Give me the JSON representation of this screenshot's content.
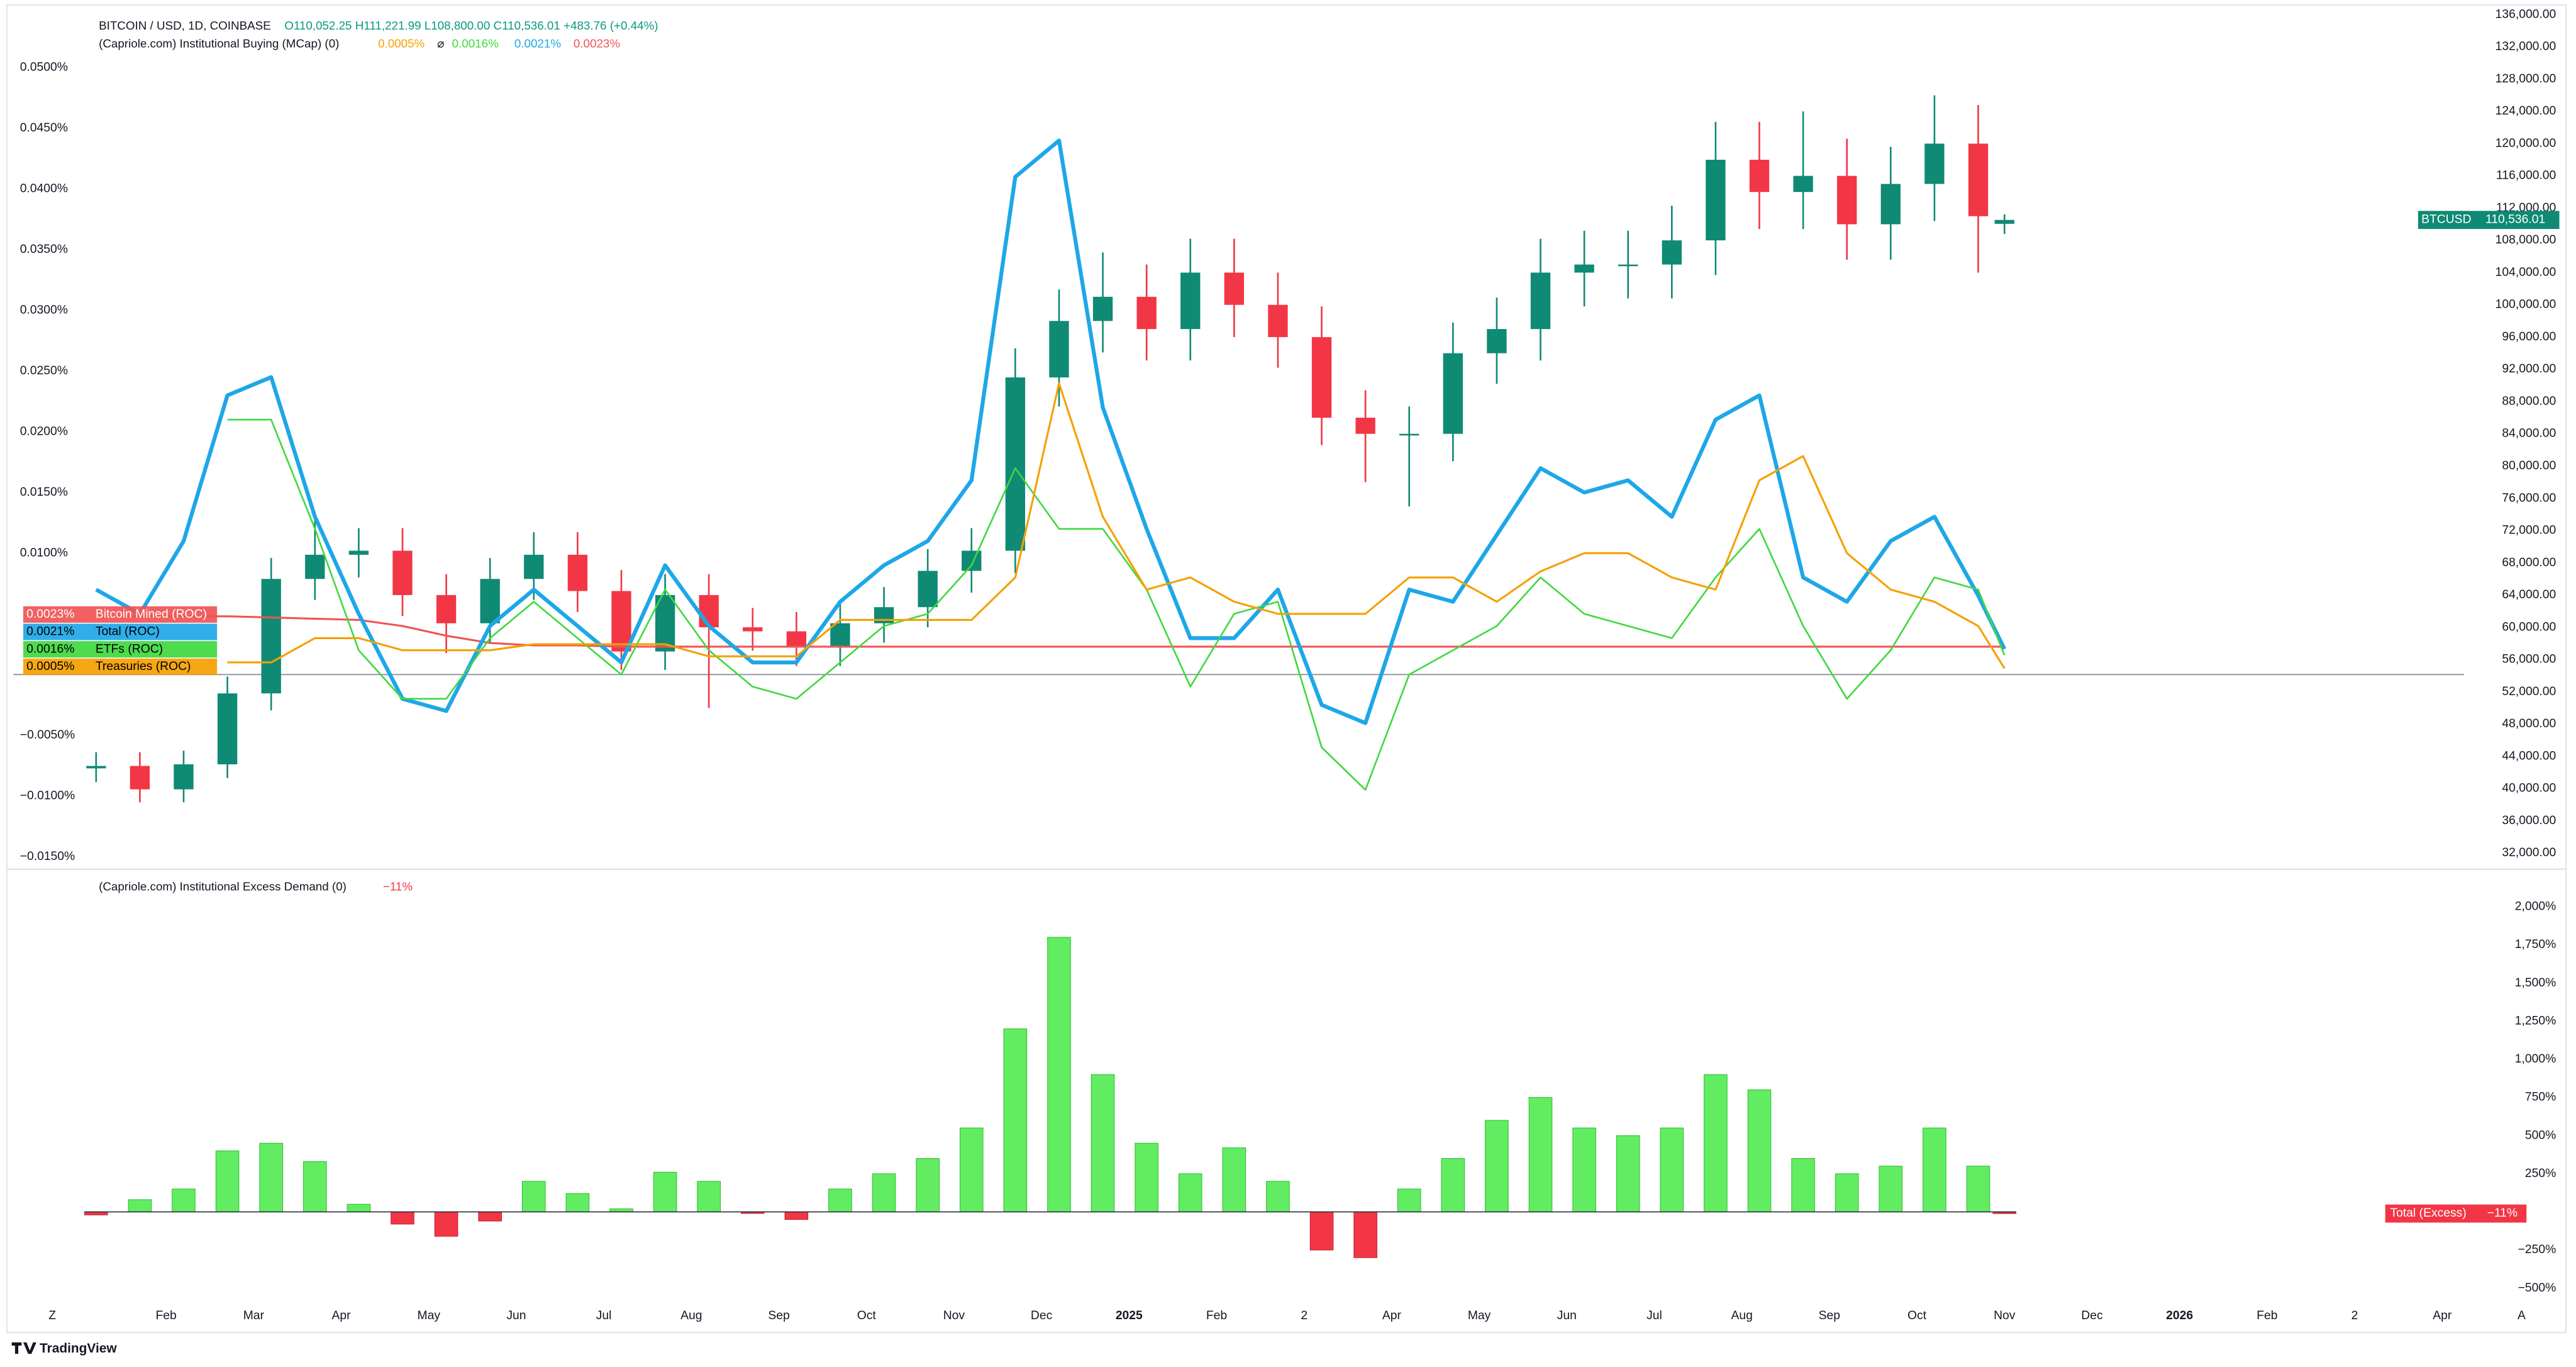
{
  "chart_data": [
    {
      "type": "candlestick",
      "title": "BITCOIN / USD, 1D, COINBASE",
      "ohlc_legend": "O110,052.25 H111,221.99 L108,800.00 C110,536.01 +483.76 (+0.44%)",
      "symbol": "BTCUSD",
      "last_label": "110,536.01",
      "indicator_title": "(Capriole.com) Institutional Buying (MCap) (0)",
      "legend_separator": "⌀",
      "up_color": "#0f8a74",
      "down_color": "#f23645",
      "x": [
        0.2,
        0.7,
        1.2,
        1.7,
        2.2,
        2.7,
        3.2,
        3.7,
        4.2,
        4.7,
        5.2,
        5.7,
        6.2,
        6.7,
        7.2,
        7.7,
        8.2,
        8.7,
        9.2,
        9.7,
        10.2,
        10.7,
        11.2,
        11.7,
        12.2,
        12.7,
        13.2,
        13.7,
        14.2,
        14.7,
        15.2,
        15.7,
        16.2,
        16.7,
        17.2,
        17.7,
        18.2,
        18.7,
        19.2,
        19.7,
        20.2,
        20.7,
        21.2,
        21.7,
        22.0
      ],
      "xlim": [
        -0.745,
        27.25
      ],
      "open": [
        42500,
        42800,
        39900,
        43000,
        51800,
        66000,
        69000,
        69500,
        64000,
        60500,
        66000,
        69000,
        64500,
        57000,
        64000,
        60000,
        59500,
        57500,
        60500,
        62500,
        67000,
        69500,
        91000,
        98000,
        101000,
        97000,
        104000,
        100000,
        96000,
        86000,
        84000,
        84000,
        94000,
        97000,
        104000,
        105000,
        105000,
        108000,
        118000,
        114000,
        116000,
        110000,
        115000,
        120000,
        110052.25
      ],
      "high": [
        44500,
        44500,
        44700,
        53900,
        68600,
        73500,
        72300,
        72300,
        66600,
        68600,
        71800,
        71800,
        67100,
        66600,
        66600,
        62400,
        61900,
        62900,
        65000,
        69700,
        72300,
        94600,
        101900,
        106500,
        105000,
        108200,
        108200,
        104000,
        99800,
        89400,
        87400,
        97800,
        100900,
        108200,
        109200,
        109200,
        112300,
        122700,
        122700,
        124000,
        120600,
        119600,
        126000,
        124800,
        111221.99
      ],
      "low": [
        40800,
        38300,
        38300,
        41300,
        49700,
        63400,
        66200,
        61400,
        56800,
        58100,
        63400,
        61900,
        54700,
        54700,
        50000,
        57100,
        55200,
        55200,
        58100,
        60000,
        64300,
        66700,
        87400,
        94100,
        93100,
        93100,
        96000,
        92200,
        82600,
        78000,
        75000,
        80600,
        90200,
        93100,
        99800,
        100800,
        100800,
        103700,
        109400,
        109400,
        105600,
        105600,
        110400,
        104000,
        108800
      ],
      "close": [
        42800,
        39900,
        43000,
        51800,
        66000,
        69000,
        69500,
        64000,
        60500,
        66000,
        69000,
        64500,
        57000,
        64000,
        60000,
        59500,
        57500,
        60500,
        62500,
        67000,
        69500,
        91000,
        98000,
        101000,
        97000,
        104000,
        100000,
        96000,
        86000,
        84000,
        84000,
        94000,
        97000,
        104000,
        105000,
        105000,
        108000,
        118000,
        114000,
        116000,
        110000,
        115000,
        120000,
        111000,
        110536.01
      ],
      "ylim": [
        30200,
        136800
      ],
      "yticks": [
        {
          "value": 136000,
          "label": "136,000.00"
        },
        {
          "value": 132000,
          "label": "132,000.00"
        },
        {
          "value": 128000,
          "label": "128,000.00"
        },
        {
          "value": 124000,
          "label": "124,000.00"
        },
        {
          "value": 120000,
          "label": "120,000.00"
        },
        {
          "value": 116000,
          "label": "116,000.00"
        },
        {
          "value": 112000,
          "label": "112,000.00"
        },
        {
          "value": 108000,
          "label": "108,000.00"
        },
        {
          "value": 104000,
          "label": "104,000.00"
        },
        {
          "value": 100000,
          "label": "100,000.00"
        },
        {
          "value": 96000,
          "label": "96,000.00"
        },
        {
          "value": 92000,
          "label": "92,000.00"
        },
        {
          "value": 88000,
          "label": "88,000.00"
        },
        {
          "value": 84000,
          "label": "84,000.00"
        },
        {
          "value": 80000,
          "label": "80,000.00"
        },
        {
          "value": 76000,
          "label": "76,000.00"
        },
        {
          "value": 72000,
          "label": "72,000.00"
        },
        {
          "value": 68000,
          "label": "68,000.00"
        },
        {
          "value": 64000,
          "label": "64,000.00"
        },
        {
          "value": 60000,
          "label": "60,000.00"
        },
        {
          "value": 56000,
          "label": "56,000.00"
        },
        {
          "value": 52000,
          "label": "52,000.00"
        },
        {
          "value": 48000,
          "label": "48,000.00"
        },
        {
          "value": 44000,
          "label": "44,000.00"
        },
        {
          "value": 40000,
          "label": "40,000.00"
        },
        {
          "value": 36000,
          "label": "36,000.00"
        },
        {
          "value": 32000,
          "label": "32,000.00"
        }
      ],
      "y2lim": [
        -0.0159,
        0.0549
      ],
      "y2ticks": [
        {
          "value": 0.05,
          "label": "0.0500%"
        },
        {
          "value": 0.045,
          "label": "0.0450%"
        },
        {
          "value": 0.04,
          "label": "0.0400%"
        },
        {
          "value": 0.035,
          "label": "0.0350%"
        },
        {
          "value": 0.03,
          "label": "0.0300%"
        },
        {
          "value": 0.025,
          "label": "0.0250%"
        },
        {
          "value": 0.02,
          "label": "0.0200%"
        },
        {
          "value": 0.015,
          "label": "0.0150%"
        },
        {
          "value": 0.01,
          "label": "0.0100%"
        },
        {
          "value": -0.005,
          "label": "−0.0050%"
        },
        {
          "value": -0.01,
          "label": "−0.0100%"
        },
        {
          "value": -0.015,
          "label": "−0.0150%"
        }
      ],
      "series": [
        {
          "name": "Bitcoin Mined (ROC)",
          "color": "#f05454",
          "axis": "y2",
          "last_value_label": "0.0023%",
          "values": [
            0.0048,
            0.0048,
            0.0048,
            0.0048,
            0.0047,
            0.0046,
            0.0045,
            0.004,
            0.0032,
            0.0026,
            0.0024,
            0.0024,
            0.0023,
            0.0023,
            0.0023,
            0.0023,
            0.0023,
            0.0023,
            0.0023,
            0.0023,
            0.0023,
            0.0023,
            0.0023,
            0.0023,
            0.0023,
            0.0023,
            0.0023,
            0.0023,
            0.0023,
            0.0023,
            0.0023,
            0.0023,
            0.0023,
            0.0023,
            0.0023,
            0.0023,
            0.0023,
            0.0023,
            0.0023,
            0.0023,
            0.0023,
            0.0023,
            0.0023,
            0.0023,
            0.0023
          ]
        },
        {
          "name": "Total (ROC)",
          "color": "#1ea7e8",
          "axis": "y2",
          "last_value_label": "0.0021%",
          "values": [
            0.007,
            0.005,
            0.011,
            0.023,
            0.0245,
            0.013,
            0.005,
            -0.002,
            -0.003,
            0.004,
            0.007,
            0.004,
            0.001,
            0.009,
            0.004,
            0.001,
            0.001,
            0.006,
            0.009,
            0.011,
            0.016,
            0.041,
            0.044,
            0.022,
            0.012,
            0.003,
            0.003,
            0.007,
            -0.0025,
            -0.004,
            0.007,
            0.006,
            0.0115,
            0.017,
            0.015,
            0.016,
            0.013,
            0.021,
            0.023,
            0.008,
            0.006,
            0.011,
            0.013,
            0.0065,
            0.0021
          ]
        },
        {
          "name": "ETFs (ROC)",
          "color": "#3fd83f",
          "axis": "y2",
          "last_value_label": "0.0016%",
          "values": [
            null,
            null,
            null,
            0.021,
            0.021,
            0.012,
            0.002,
            -0.002,
            -0.002,
            0.003,
            0.006,
            0.003,
            0.0,
            0.007,
            0.002,
            -0.001,
            -0.002,
            0.001,
            0.004,
            0.005,
            0.009,
            0.017,
            0.012,
            0.012,
            0.007,
            -0.001,
            0.005,
            0.006,
            -0.006,
            -0.0095,
            0.0,
            0.002,
            0.004,
            0.008,
            0.005,
            0.004,
            0.003,
            0.008,
            0.012,
            0.004,
            -0.002,
            0.002,
            0.008,
            0.007,
            0.0016
          ]
        },
        {
          "name": "Treasuries (ROC)",
          "color": "#f5a000",
          "axis": "y2",
          "last_value_label": "0.0005%",
          "values": [
            null,
            null,
            null,
            0.001,
            0.001,
            0.003,
            0.003,
            0.002,
            0.002,
            0.002,
            0.0025,
            0.0025,
            0.0025,
            0.0025,
            0.0015,
            0.0015,
            0.0015,
            0.0045,
            0.0045,
            0.0045,
            0.0045,
            0.008,
            0.024,
            0.013,
            0.007,
            0.008,
            0.006,
            0.005,
            0.005,
            0.005,
            0.008,
            0.008,
            0.006,
            0.0085,
            0.01,
            0.01,
            0.008,
            0.007,
            0.016,
            0.018,
            0.01,
            0.007,
            0.006,
            0.004,
            0.0005
          ]
        }
      ]
    },
    {
      "type": "bar",
      "title": "(Capriole.com) Institutional Excess Demand (0)",
      "x": [
        0.2,
        0.7,
        1.2,
        1.7,
        2.2,
        2.7,
        3.2,
        3.7,
        4.2,
        4.7,
        5.2,
        5.7,
        6.2,
        6.7,
        7.2,
        7.7,
        8.2,
        8.7,
        9.2,
        9.7,
        10.2,
        10.7,
        11.2,
        11.7,
        12.2,
        12.7,
        13.2,
        13.7,
        14.2,
        14.7,
        15.2,
        15.7,
        16.2,
        16.7,
        17.2,
        17.7,
        18.2,
        18.7,
        19.2,
        19.7,
        20.2,
        20.7,
        21.2,
        21.7,
        22.0
      ],
      "xlim": [
        -0.745,
        27.25
      ],
      "xticks": [
        {
          "value": -0.3,
          "label": "Z"
        },
        {
          "value": 1,
          "label": "Feb"
        },
        {
          "value": 2,
          "label": "Mar"
        },
        {
          "value": 3,
          "label": "Apr"
        },
        {
          "value": 4,
          "label": "May"
        },
        {
          "value": 5,
          "label": "Jun"
        },
        {
          "value": 6,
          "label": "Jul"
        },
        {
          "value": 7,
          "label": "Aug"
        },
        {
          "value": 8,
          "label": "Sep"
        },
        {
          "value": 9,
          "label": "Oct"
        },
        {
          "value": 10,
          "label": "Nov"
        },
        {
          "value": 11,
          "label": "Dec"
        },
        {
          "value": 12,
          "label": "2025"
        },
        {
          "value": 13,
          "label": "Feb"
        },
        {
          "value": 14,
          "label": "2"
        },
        {
          "value": 15,
          "label": "Apr"
        },
        {
          "value": 16,
          "label": "May"
        },
        {
          "value": 17,
          "label": "Jun"
        },
        {
          "value": 18,
          "label": "Jul"
        },
        {
          "value": 19,
          "label": "Aug"
        },
        {
          "value": 20,
          "label": "Sep"
        },
        {
          "value": 21,
          "label": "Oct"
        },
        {
          "value": 22,
          "label": "Nov"
        },
        {
          "value": 23,
          "label": "Dec"
        },
        {
          "value": 24,
          "label": "2026"
        },
        {
          "value": 25,
          "label": "Feb"
        },
        {
          "value": 26,
          "label": "2"
        },
        {
          "value": 27,
          "label": "Apr"
        }
      ],
      "ylim": [
        -586,
        2225
      ],
      "yticks": [
        {
          "value": 2000,
          "label": "2,000%"
        },
        {
          "value": 1750,
          "label": "1,750%"
        },
        {
          "value": 1500,
          "label": "1,500%"
        },
        {
          "value": 1250,
          "label": "1,250%"
        },
        {
          "value": 1000,
          "label": "1,000%"
        },
        {
          "value": 750,
          "label": "750%"
        },
        {
          "value": 500,
          "label": "500%"
        },
        {
          "value": 250,
          "label": "250%"
        },
        {
          "value": -250,
          "label": "−250%"
        },
        {
          "value": -500,
          "label": "−500%"
        }
      ],
      "series": [
        {
          "name": "Total (Excess)",
          "color": "#62ec62",
          "negative_color": "#f23645",
          "last_value_label": "−11%",
          "values": [
            -20,
            80,
            150,
            400,
            450,
            330,
            50,
            -80,
            -160,
            -60,
            200,
            120,
            20,
            260,
            200,
            -10,
            -50,
            150,
            250,
            350,
            550,
            1200,
            1800,
            900,
            450,
            250,
            420,
            200,
            -250,
            -300,
            150,
            350,
            600,
            750,
            550,
            500,
            550,
            900,
            800,
            350,
            250,
            300,
            550,
            300,
            -11
          ]
        }
      ],
      "autoscale_button": "A"
    }
  ],
  "footer": {
    "brand": "TradingView"
  }
}
